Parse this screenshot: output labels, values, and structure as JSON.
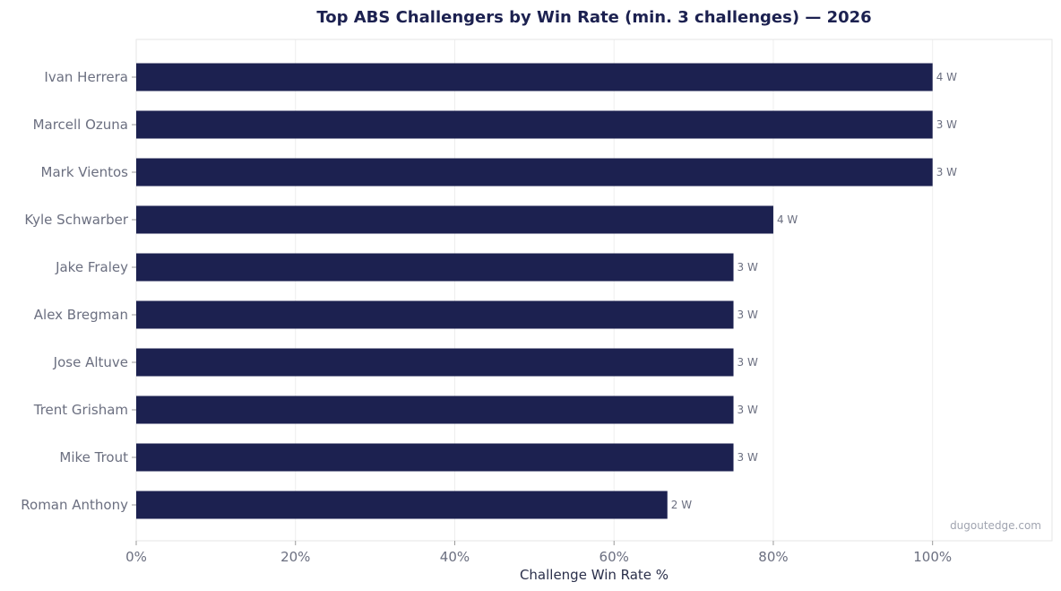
{
  "chart_data": {
    "type": "bar",
    "orientation": "horizontal",
    "title": "Top ABS Challengers by Win Rate (min. 3 challenges) — 2026",
    "xlabel": "Challenge Win Rate %",
    "ylabel": "",
    "xlim": [
      0,
      115
    ],
    "xticks": [
      0,
      20,
      40,
      60,
      80,
      100
    ],
    "xtick_labels": [
      "0%",
      "20%",
      "40%",
      "60%",
      "80%",
      "100%"
    ],
    "grid": "vertical",
    "categories": [
      "Ivan Herrera",
      "Marcell Ozuna",
      "Mark Vientos",
      "Kyle Schwarber",
      "Jake Fraley",
      "Alex Bregman",
      "Jose Altuve",
      "Trent Grisham",
      "Mike Trout",
      "Roman Anthony"
    ],
    "values": [
      100,
      100,
      100,
      80,
      75,
      75,
      75,
      75,
      75,
      66.7
    ],
    "data_labels": [
      "4 W",
      "3 W",
      "3 W",
      "4 W",
      "3 W",
      "3 W",
      "3 W",
      "3 W",
      "3 W",
      "2 W"
    ],
    "bar_color": "#1c2150"
  },
  "watermark": "dugoutedge.com"
}
